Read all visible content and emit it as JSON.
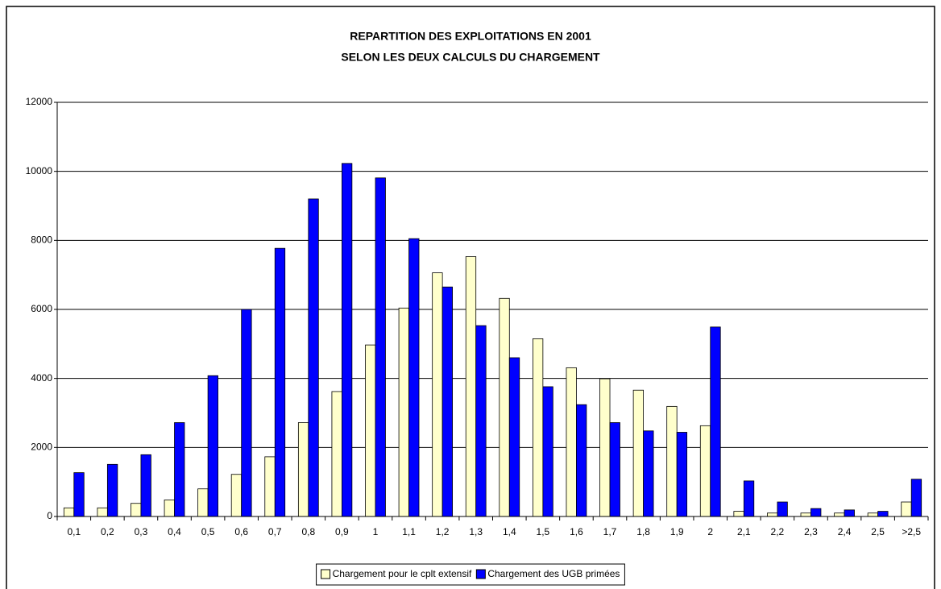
{
  "chart_data": {
    "type": "bar",
    "title": [
      "REPARTITION DES EXPLOITATIONS EN 2001",
      "SELON LES DEUX CALCULS DU CHARGEMENT"
    ],
    "categories": [
      "0,1",
      "0,2",
      "0,3",
      "0,4",
      "0,5",
      "0,6",
      "0,7",
      "0,8",
      "0,9",
      "1",
      "1,1",
      "1,2",
      "1,3",
      "1,4",
      "1,5",
      "1,6",
      "1,7",
      "1,8",
      "1,9",
      "2",
      "2,1",
      "2,2",
      "2,3",
      "2,4",
      "2,5",
      ">2,5"
    ],
    "series": [
      {
        "name": "Chargement pour le cplt extensif",
        "color": "#ffffcc",
        "values": [
          250,
          250,
          380,
          480,
          800,
          1220,
          1730,
          2720,
          3620,
          4970,
          6040,
          7060,
          7530,
          6320,
          5150,
          4310,
          3990,
          3660,
          3190,
          2630,
          150,
          100,
          100,
          100,
          100,
          420
        ]
      },
      {
        "name": "Chargement des UGB primées",
        "color": "#0000ff",
        "values": [
          1270,
          1510,
          1790,
          2720,
          4080,
          6000,
          7770,
          9200,
          10230,
          9810,
          8050,
          6650,
          5530,
          4600,
          3760,
          3240,
          2720,
          2480,
          2440,
          5490,
          1030,
          420,
          230,
          190,
          150,
          1080
        ]
      }
    ],
    "ylim": [
      0,
      12000
    ],
    "yticks": [
      0,
      2000,
      4000,
      6000,
      8000,
      10000,
      12000
    ],
    "grid": true,
    "legend": "bottom"
  }
}
